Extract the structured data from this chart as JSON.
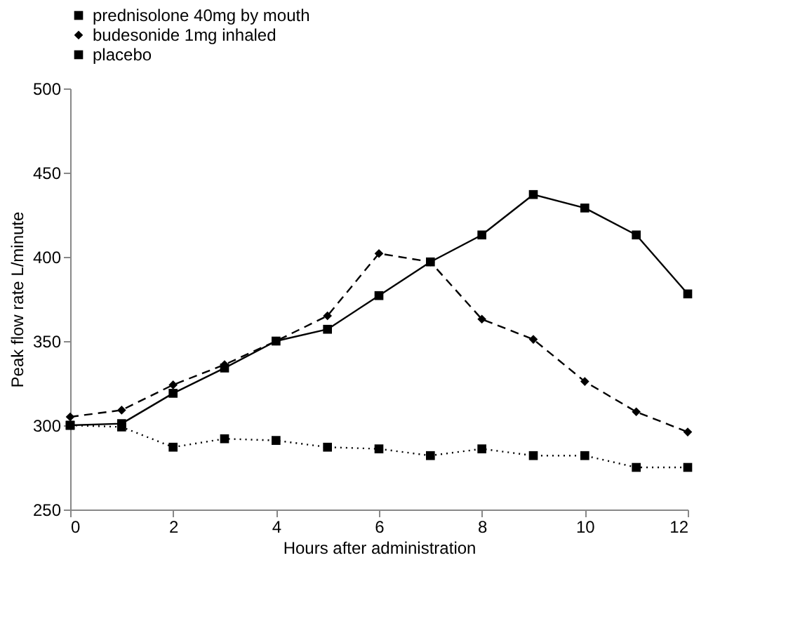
{
  "chart_data": {
    "type": "line",
    "xlabel": "Hours after administration",
    "ylabel": "Peak flow rate L/minute",
    "x": [
      0,
      1,
      2,
      3,
      4,
      5,
      6,
      7,
      8,
      9,
      10,
      11,
      12
    ],
    "series": [
      {
        "name": "prednisolone 40mg by mouth",
        "color": "#000000",
        "marker": "square",
        "line_style": "solid",
        "values": [
          300,
          301,
          319,
          334,
          350,
          357,
          377,
          397,
          413,
          437,
          429,
          413,
          378
        ]
      },
      {
        "name": "budesonide 1mg inhaled",
        "color": "#000000",
        "marker": "diamond",
        "line_style": "dashed",
        "values": [
          305,
          309,
          324,
          336,
          350,
          365,
          402,
          397,
          363,
          351,
          326,
          308,
          296
        ]
      },
      {
        "name": "placebo",
        "color": "#000000",
        "marker": "square",
        "line_style": "dotted",
        "values": [
          300,
          299,
          287,
          292,
          291,
          287,
          286,
          282,
          286,
          282,
          282,
          275,
          275
        ]
      }
    ],
    "xlim": [
      0,
      12
    ],
    "xticks": [
      0,
      2,
      4,
      6,
      8,
      10,
      12
    ],
    "ylim": [
      250,
      500
    ],
    "yticks": [
      250,
      300,
      350,
      400,
      450,
      500
    ],
    "grid": false,
    "legend": "top"
  }
}
